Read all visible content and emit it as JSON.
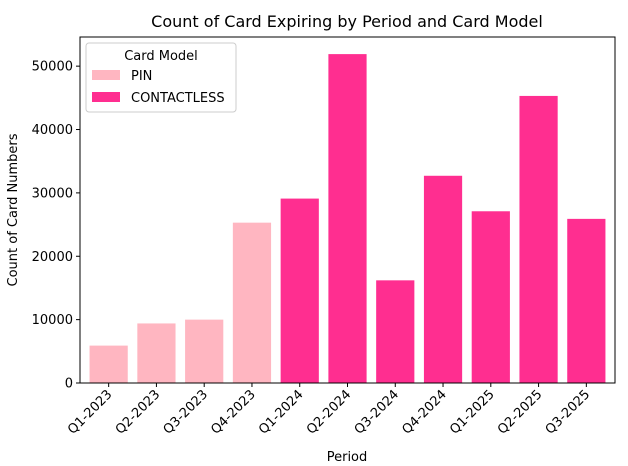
{
  "chart_data": {
    "type": "bar",
    "title": "Count of Card Expiring by Period and Card Model",
    "xlabel": "Period",
    "ylabel": "Count of Card Numbers",
    "ylim": [
      0,
      54600
    ],
    "yticks": [
      0,
      10000,
      20000,
      30000,
      40000,
      50000
    ],
    "ytick_labels": [
      "0",
      "10000",
      "20000",
      "30000",
      "40000",
      "50000"
    ],
    "categories": [
      "Q1-2023",
      "Q2-2023",
      "Q3-2023",
      "Q4-2023",
      "Q1-2024",
      "Q2-2024",
      "Q3-2024",
      "Q4-2024",
      "Q1-2025",
      "Q2-2025",
      "Q3-2025"
    ],
    "legend": {
      "title": "Card Model",
      "position": "top-left"
    },
    "series": [
      {
        "name": "PIN",
        "color": "#ffb6c1",
        "values": [
          5900,
          9400,
          10000,
          25300,
          null,
          null,
          null,
          null,
          null,
          null,
          null
        ]
      },
      {
        "name": "CONTACTLESS",
        "color": "#ff2e90",
        "values": [
          null,
          null,
          null,
          null,
          29100,
          51900,
          16200,
          32700,
          27100,
          45300,
          25900
        ]
      }
    ]
  }
}
